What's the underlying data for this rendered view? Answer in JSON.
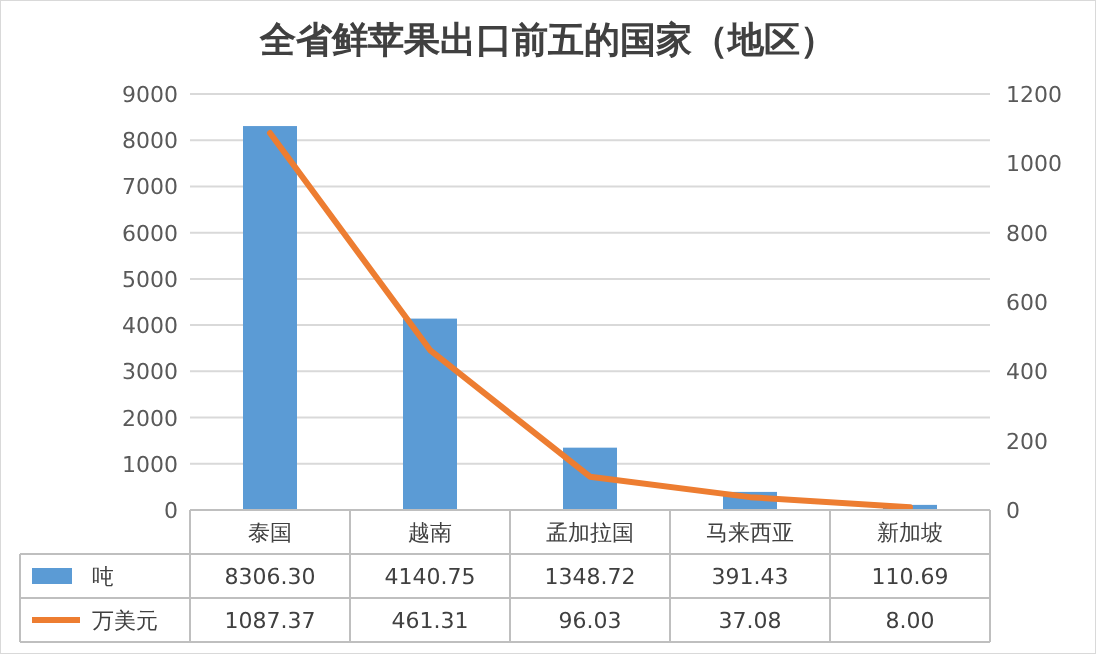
{
  "chart_data": {
    "type": "bar",
    "title": "全省鲜苹果出口前五的国家（地区）",
    "categories": [
      "泰国",
      "越南",
      "孟加拉国",
      "马来西亚",
      "新加坡"
    ],
    "series": [
      {
        "name": "吨",
        "color": "#5b9bd5",
        "values": [
          8306.3,
          4140.75,
          1348.72,
          391.43,
          110.69
        ],
        "value_labels": [
          "8306.30",
          "4140.75",
          "1348.72",
          "391.43",
          "110.69"
        ]
      },
      {
        "name": "万美元",
        "type": "line",
        "axis": "y2",
        "color": "#ed7d31",
        "values": [
          1087.37,
          461.31,
          96.03,
          37.08,
          8.0
        ],
        "value_labels": [
          "1087.37",
          "461.31",
          "96.03",
          "37.08",
          "8.00"
        ]
      }
    ],
    "ylim": [
      0,
      9000
    ],
    "yticks": [
      0,
      1000,
      2000,
      3000,
      4000,
      5000,
      6000,
      7000,
      8000,
      9000
    ],
    "y2lim": [
      0,
      1200
    ],
    "y2ticks": [
      0,
      200,
      400,
      600,
      800,
      1000,
      1200
    ],
    "grid": "y",
    "legend": "bottom",
    "marker": "none",
    "line_style": "solid"
  }
}
